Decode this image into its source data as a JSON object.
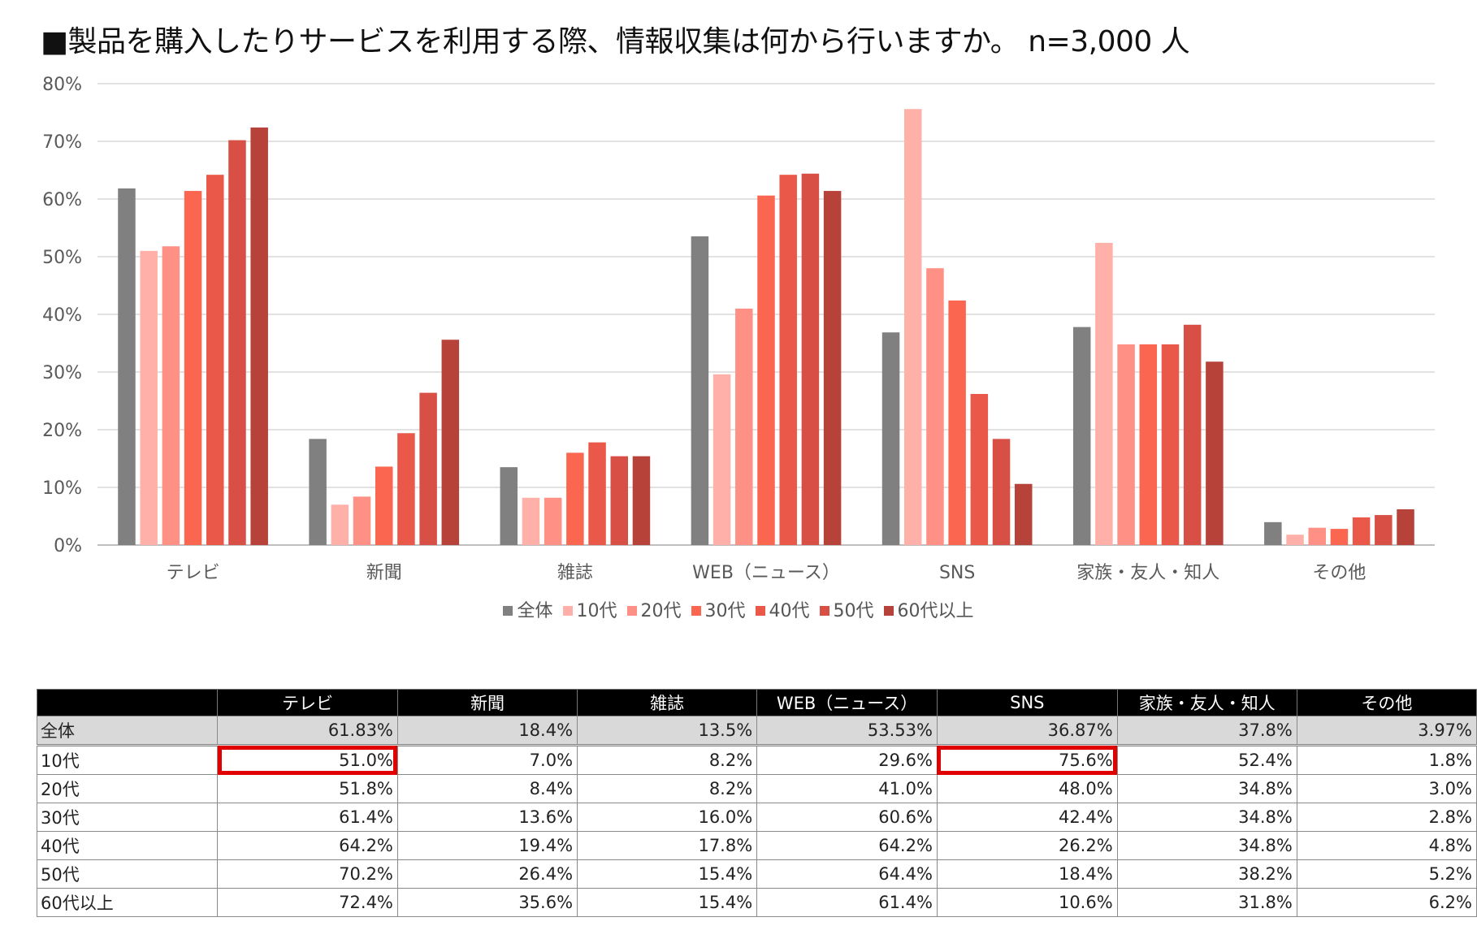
{
  "title": "■製品を購入したりサービスを利用する際、情報収集は何から行いますか。 n=3,000 人",
  "chart_data": {
    "type": "bar",
    "categories": [
      "テレビ",
      "新聞",
      "雑誌",
      "WEB（ニュース）",
      "SNS",
      "家族・友人・知人",
      "その他"
    ],
    "y_ticks": [
      "80%",
      "70%",
      "60%",
      "50%",
      "40%",
      "30%",
      "20%",
      "10%",
      "0%"
    ],
    "ylim": [
      0,
      80
    ],
    "grid": true,
    "legend_position": "bottom",
    "series": [
      {
        "name": "全体",
        "color": "#808080",
        "values": [
          61.83,
          18.4,
          13.5,
          53.53,
          36.87,
          37.8,
          3.97
        ]
      },
      {
        "name": "10代",
        "color": "#ffb0a8",
        "values": [
          51.0,
          7.0,
          8.2,
          29.6,
          75.6,
          52.4,
          1.8
        ]
      },
      {
        "name": "20代",
        "color": "#ff9085",
        "values": [
          51.8,
          8.4,
          8.2,
          41.0,
          48.0,
          34.8,
          3.0
        ]
      },
      {
        "name": "30代",
        "color": "#fb6650",
        "values": [
          61.4,
          13.6,
          16.0,
          60.6,
          42.4,
          34.8,
          2.8
        ]
      },
      {
        "name": "40代",
        "color": "#e95848",
        "values": [
          64.2,
          19.4,
          17.8,
          64.2,
          26.2,
          34.8,
          4.8
        ]
      },
      {
        "name": "50代",
        "color": "#d84f45",
        "values": [
          70.2,
          26.4,
          15.4,
          64.4,
          18.4,
          38.2,
          5.2
        ]
      },
      {
        "name": "60代以上",
        "color": "#b6423a",
        "values": [
          72.4,
          35.6,
          15.4,
          61.4,
          10.6,
          31.8,
          6.2
        ]
      }
    ]
  },
  "table": {
    "headers": [
      "",
      "テレビ",
      "新聞",
      "雑誌",
      "WEB（ニュース）",
      "SNS",
      "家族・友人・知人",
      "その他"
    ],
    "rows": [
      {
        "label": "全体",
        "cells": [
          "61.83%",
          "18.4%",
          "13.5%",
          "53.53%",
          "36.87%",
          "37.8%",
          "3.97%"
        ]
      },
      {
        "label": "10代",
        "cells": [
          "51.0%",
          "7.0%",
          "8.2%",
          "29.6%",
          "75.6%",
          "52.4%",
          "1.8%"
        ],
        "highlight": [
          0,
          4
        ]
      },
      {
        "label": "20代",
        "cells": [
          "51.8%",
          "8.4%",
          "8.2%",
          "41.0%",
          "48.0%",
          "34.8%",
          "3.0%"
        ]
      },
      {
        "label": "30代",
        "cells": [
          "61.4%",
          "13.6%",
          "16.0%",
          "60.6%",
          "42.4%",
          "34.8%",
          "2.8%"
        ]
      },
      {
        "label": "40代",
        "cells": [
          "64.2%",
          "19.4%",
          "17.8%",
          "64.2%",
          "26.2%",
          "34.8%",
          "4.8%"
        ]
      },
      {
        "label": "50代",
        "cells": [
          "70.2%",
          "26.4%",
          "15.4%",
          "64.4%",
          "18.4%",
          "38.2%",
          "5.2%"
        ]
      },
      {
        "label": "60代以上",
        "cells": [
          "72.4%",
          "35.6%",
          "15.4%",
          "61.4%",
          "10.6%",
          "31.8%",
          "6.2%"
        ]
      }
    ],
    "highlight_color": "#e00000"
  }
}
